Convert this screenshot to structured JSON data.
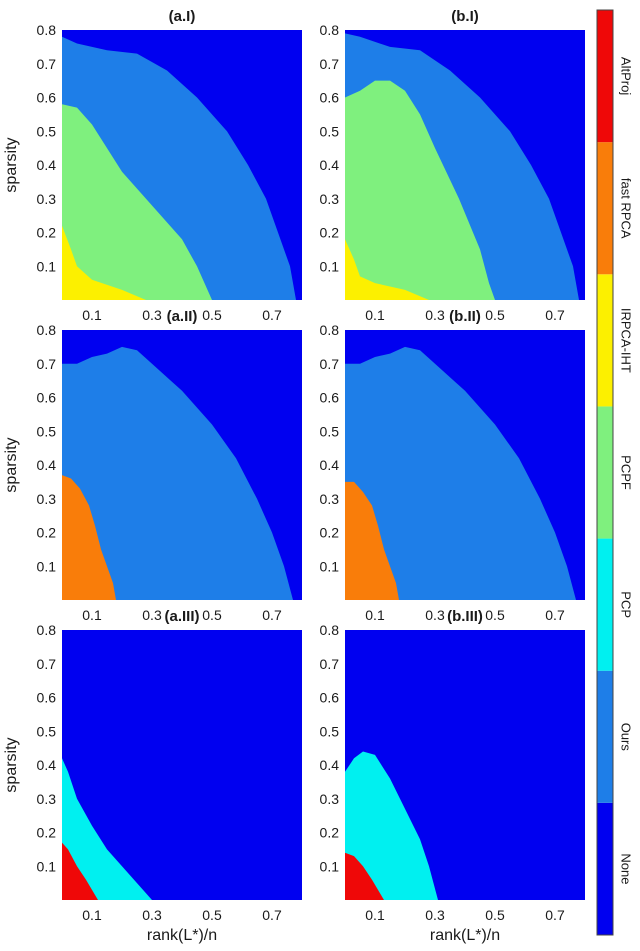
{
  "chart_data": {
    "type": "heatmap",
    "colorbar": {
      "categories": [
        "None",
        "Ours",
        "PCP",
        "PCPF",
        "IRPCA-IHT",
        "fast RPCA",
        "AltProj"
      ],
      "colors": [
        "#0000f0",
        "#1e7ee8",
        "#00f0f0",
        "#7ff07e",
        "#fcf000",
        "#f97d0a",
        "#ef0808"
      ]
    },
    "xlabel": "rank(L*)/n",
    "ylabel": "sparsity",
    "xlim": [
      0.0,
      0.8
    ],
    "ylim": [
      0.0,
      0.8
    ],
    "xticks": [
      "0.1",
      "0.3",
      "0.5",
      "0.7"
    ],
    "yticks": [
      "0.1",
      "0.2",
      "0.3",
      "0.4",
      "0.5",
      "0.6",
      "0.7",
      "0.8"
    ],
    "panels": [
      {
        "title": "(a.I)",
        "regions": [
          {
            "category": "Ours",
            "boundary": [
              [
                0.0,
                0.78
              ],
              [
                0.05,
                0.76
              ],
              [
                0.15,
                0.74
              ],
              [
                0.25,
                0.73
              ],
              [
                0.35,
                0.68
              ],
              [
                0.45,
                0.6
              ],
              [
                0.55,
                0.5
              ],
              [
                0.62,
                0.4
              ],
              [
                0.68,
                0.3
              ],
              [
                0.72,
                0.2
              ],
              [
                0.76,
                0.1
              ],
              [
                0.78,
                0.0
              ]
            ]
          },
          {
            "category": "PCPF",
            "boundary": [
              [
                0.0,
                0.58
              ],
              [
                0.05,
                0.57
              ],
              [
                0.1,
                0.52
              ],
              [
                0.2,
                0.38
              ],
              [
                0.3,
                0.28
              ],
              [
                0.4,
                0.18
              ],
              [
                0.45,
                0.1
              ],
              [
                0.5,
                0.0
              ]
            ]
          },
          {
            "category": "IRPCA-IHT",
            "boundary": [
              [
                0.0,
                0.22
              ],
              [
                0.03,
                0.15
              ],
              [
                0.05,
                0.1
              ],
              [
                0.1,
                0.06
              ],
              [
                0.2,
                0.03
              ],
              [
                0.28,
                0.0
              ]
            ]
          }
        ]
      },
      {
        "title": "(b.I)",
        "regions": [
          {
            "category": "Ours",
            "boundary": [
              [
                0.0,
                0.79
              ],
              [
                0.05,
                0.78
              ],
              [
                0.15,
                0.75
              ],
              [
                0.25,
                0.74
              ],
              [
                0.35,
                0.68
              ],
              [
                0.45,
                0.6
              ],
              [
                0.55,
                0.5
              ],
              [
                0.62,
                0.4
              ],
              [
                0.68,
                0.3
              ],
              [
                0.72,
                0.2
              ],
              [
                0.76,
                0.1
              ],
              [
                0.78,
                0.0
              ]
            ]
          },
          {
            "category": "PCPF",
            "boundary": [
              [
                0.0,
                0.6
              ],
              [
                0.05,
                0.62
              ],
              [
                0.1,
                0.65
              ],
              [
                0.15,
                0.65
              ],
              [
                0.2,
                0.62
              ],
              [
                0.25,
                0.55
              ],
              [
                0.3,
                0.45
              ],
              [
                0.38,
                0.3
              ],
              [
                0.45,
                0.15
              ],
              [
                0.48,
                0.05
              ],
              [
                0.5,
                0.0
              ]
            ]
          },
          {
            "category": "IRPCA-IHT",
            "boundary": [
              [
                0.0,
                0.18
              ],
              [
                0.03,
                0.12
              ],
              [
                0.05,
                0.07
              ],
              [
                0.1,
                0.05
              ],
              [
                0.2,
                0.03
              ],
              [
                0.28,
                0.0
              ]
            ]
          }
        ]
      },
      {
        "title": "(a.II)",
        "regions": [
          {
            "category": "Ours",
            "boundary": [
              [
                0.0,
                0.7
              ],
              [
                0.05,
                0.7
              ],
              [
                0.1,
                0.72
              ],
              [
                0.15,
                0.73
              ],
              [
                0.2,
                0.75
              ],
              [
                0.25,
                0.74
              ],
              [
                0.3,
                0.7
              ],
              [
                0.4,
                0.62
              ],
              [
                0.5,
                0.52
              ],
              [
                0.58,
                0.42
              ],
              [
                0.65,
                0.3
              ],
              [
                0.7,
                0.2
              ],
              [
                0.74,
                0.1
              ],
              [
                0.77,
                0.0
              ]
            ]
          },
          {
            "category": "fast RPCA",
            "boundary": [
              [
                0.0,
                0.37
              ],
              [
                0.03,
                0.36
              ],
              [
                0.06,
                0.33
              ],
              [
                0.09,
                0.28
              ],
              [
                0.11,
                0.22
              ],
              [
                0.13,
                0.15
              ],
              [
                0.15,
                0.1
              ],
              [
                0.17,
                0.05
              ],
              [
                0.18,
                0.0
              ]
            ]
          }
        ]
      },
      {
        "title": "(b.II)",
        "regions": [
          {
            "category": "Ours",
            "boundary": [
              [
                0.0,
                0.7
              ],
              [
                0.05,
                0.7
              ],
              [
                0.1,
                0.72
              ],
              [
                0.15,
                0.73
              ],
              [
                0.2,
                0.75
              ],
              [
                0.25,
                0.74
              ],
              [
                0.3,
                0.7
              ],
              [
                0.4,
                0.62
              ],
              [
                0.5,
                0.52
              ],
              [
                0.58,
                0.42
              ],
              [
                0.65,
                0.3
              ],
              [
                0.7,
                0.2
              ],
              [
                0.74,
                0.1
              ],
              [
                0.77,
                0.0
              ]
            ]
          },
          {
            "category": "fast RPCA",
            "boundary": [
              [
                0.0,
                0.35
              ],
              [
                0.03,
                0.35
              ],
              [
                0.06,
                0.32
              ],
              [
                0.09,
                0.28
              ],
              [
                0.11,
                0.22
              ],
              [
                0.13,
                0.15
              ],
              [
                0.15,
                0.1
              ],
              [
                0.17,
                0.05
              ],
              [
                0.18,
                0.0
              ]
            ]
          }
        ]
      },
      {
        "title": "(a.III)",
        "regions": [
          {
            "category": "PCP",
            "boundary": [
              [
                0.0,
                0.42
              ],
              [
                0.02,
                0.38
              ],
              [
                0.05,
                0.3
              ],
              [
                0.1,
                0.22
              ],
              [
                0.15,
                0.15
              ],
              [
                0.2,
                0.1
              ],
              [
                0.25,
                0.05
              ],
              [
                0.3,
                0.0
              ]
            ]
          },
          {
            "category": "AltProj",
            "boundary": [
              [
                0.0,
                0.17
              ],
              [
                0.02,
                0.15
              ],
              [
                0.05,
                0.1
              ],
              [
                0.08,
                0.06
              ],
              [
                0.1,
                0.03
              ],
              [
                0.12,
                0.0
              ]
            ]
          }
        ]
      },
      {
        "title": "(b.III)",
        "regions": [
          {
            "category": "PCP",
            "boundary": [
              [
                0.0,
                0.38
              ],
              [
                0.03,
                0.42
              ],
              [
                0.06,
                0.44
              ],
              [
                0.1,
                0.43
              ],
              [
                0.15,
                0.36
              ],
              [
                0.2,
                0.27
              ],
              [
                0.25,
                0.18
              ],
              [
                0.28,
                0.1
              ],
              [
                0.31,
                0.0
              ]
            ]
          },
          {
            "category": "AltProj",
            "boundary": [
              [
                0.0,
                0.14
              ],
              [
                0.03,
                0.13
              ],
              [
                0.06,
                0.1
              ],
              [
                0.09,
                0.06
              ],
              [
                0.11,
                0.03
              ],
              [
                0.13,
                0.0
              ]
            ]
          }
        ]
      }
    ]
  }
}
